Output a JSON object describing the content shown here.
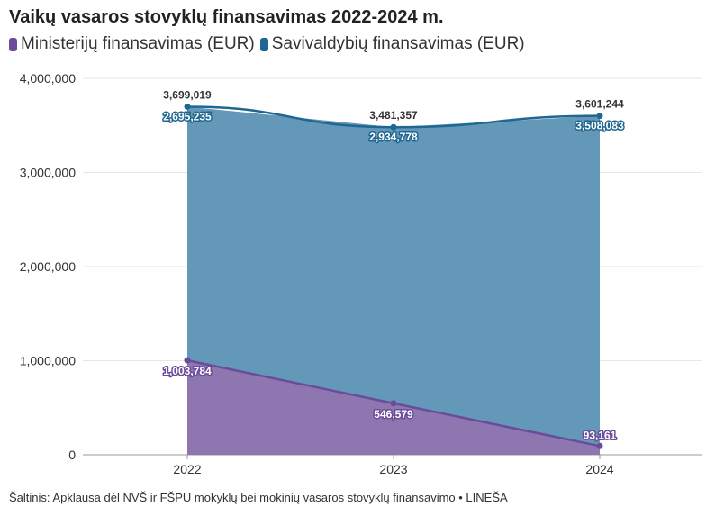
{
  "chart_data": {
    "type": "area",
    "title": "Vaikų vasaros stovyklų finansavimas 2022-2024 m.",
    "categories": [
      "2022",
      "2023",
      "2024"
    ],
    "series": [
      {
        "name": "Ministerijų finansavimas (EUR)",
        "values": [
          1003784,
          546579,
          93161
        ],
        "labels": [
          "1,003,784",
          "546,579",
          "93,161"
        ],
        "color": "#6b4c9a",
        "fill": "#8e76b0"
      },
      {
        "name": "Savivaldybių finansavimas (EUR)",
        "values": [
          2695235,
          2934778,
          3508083
        ],
        "labels": [
          "2,695,235",
          "2,934,778",
          "3,508,083"
        ],
        "color": "#1f6690",
        "fill": "#6398b8"
      }
    ],
    "totals": [
      3699019,
      3481357,
      3601244
    ],
    "total_labels": [
      "3,699,019",
      "3,481,357",
      "3,601,244"
    ],
    "stacked": true,
    "ylim": [
      0,
      4000000
    ],
    "yticks": [
      0,
      1000000,
      2000000,
      3000000,
      4000000
    ],
    "ytick_labels": [
      "0",
      "1,000,000",
      "2,000,000",
      "3,000,000",
      "4,000,000"
    ],
    "grid": true,
    "legend": "top-left"
  },
  "source": "Šaltinis: Apklausa dėl NVŠ ir FŠPU mokyklų bei mokinių vasaros stovyklų finansavimo • LINEŠA"
}
